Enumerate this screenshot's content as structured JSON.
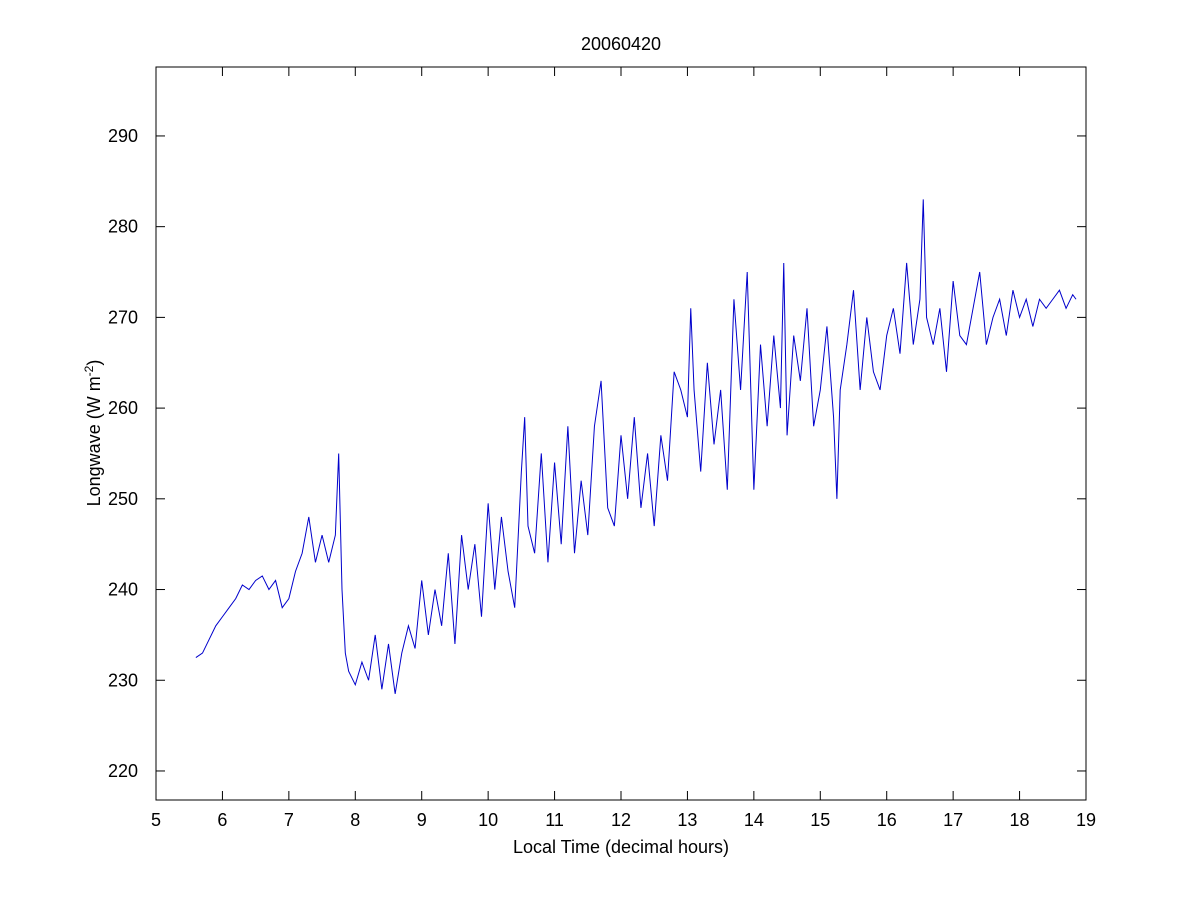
{
  "chart_data": {
    "type": "line",
    "title": "20060420",
    "xlabel": "Local Time (decimal hours)",
    "ylabel": [
      "Longwave (W m",
      "-2",
      ")"
    ],
    "xlim": [
      5,
      19
    ],
    "xticks": [
      5,
      6,
      7,
      8,
      9,
      10,
      11,
      12,
      13,
      14,
      15,
      16,
      17,
      18,
      19
    ],
    "ylim": [
      216.8,
      297.6
    ],
    "yticks": [
      220,
      230,
      240,
      250,
      260,
      270,
      280,
      290
    ],
    "series": [
      {
        "color": "#0000cc",
        "x": [
          5.6,
          5.7,
          5.8,
          5.9,
          6.0,
          6.1,
          6.2,
          6.3,
          6.4,
          6.5,
          6.6,
          6.7,
          6.8,
          6.9,
          7.0,
          7.1,
          7.2,
          7.3,
          7.4,
          7.5,
          7.6,
          7.7,
          7.75,
          7.8,
          7.85,
          7.9,
          8.0,
          8.1,
          8.2,
          8.3,
          8.4,
          8.5,
          8.6,
          8.7,
          8.8,
          8.9,
          9.0,
          9.1,
          9.2,
          9.3,
          9.4,
          9.5,
          9.6,
          9.7,
          9.8,
          9.9,
          10.0,
          10.1,
          10.2,
          10.3,
          10.4,
          10.5,
          10.55,
          10.6,
          10.7,
          10.8,
          10.9,
          11.0,
          11.1,
          11.2,
          11.3,
          11.4,
          11.5,
          11.6,
          11.7,
          11.8,
          11.9,
          12.0,
          12.1,
          12.2,
          12.3,
          12.4,
          12.5,
          12.6,
          12.7,
          12.8,
          12.9,
          13.0,
          13.05,
          13.1,
          13.2,
          13.3,
          13.4,
          13.5,
          13.6,
          13.7,
          13.8,
          13.9,
          14.0,
          14.1,
          14.2,
          14.3,
          14.4,
          14.45,
          14.5,
          14.6,
          14.7,
          14.8,
          14.9,
          15.0,
          15.1,
          15.2,
          15.25,
          15.3,
          15.4,
          15.5,
          15.6,
          15.7,
          15.8,
          15.9,
          16.0,
          16.1,
          16.2,
          16.3,
          16.4,
          16.5,
          16.55,
          16.6,
          16.7,
          16.8,
          16.9,
          17.0,
          17.1,
          17.2,
          17.3,
          17.4,
          17.5,
          17.6,
          17.7,
          17.8,
          17.9,
          18.0,
          18.1,
          18.2,
          18.3,
          18.4,
          18.5,
          18.6,
          18.7,
          18.8,
          18.85
        ],
        "values": [
          232.5,
          233,
          234.5,
          236,
          237,
          238,
          239,
          240.5,
          240,
          241,
          241.5,
          240,
          241,
          238,
          239,
          242,
          244,
          248,
          243,
          246,
          243,
          246,
          255,
          240,
          233,
          231,
          229.5,
          232,
          230,
          235,
          229,
          234,
          228.5,
          233,
          236,
          233.5,
          241,
          235,
          240,
          236,
          244,
          234,
          246,
          240,
          245,
          237,
          249.5,
          240,
          248,
          242,
          238,
          253,
          259,
          247,
          244,
          255,
          243,
          254,
          245,
          258,
          244,
          252,
          246,
          258,
          263,
          249,
          247,
          257,
          250,
          259,
          249,
          255,
          247,
          257,
          252,
          264,
          262,
          259,
          271,
          262,
          253,
          265,
          256,
          262,
          251,
          272,
          262,
          275,
          251,
          267,
          258,
          268,
          260,
          276,
          257,
          268,
          263,
          271,
          258,
          262,
          269,
          259,
          250,
          262,
          267,
          273,
          262,
          270,
          264,
          262,
          268,
          271,
          266,
          276,
          267,
          272,
          283,
          270,
          267,
          271,
          264,
          274,
          268,
          267,
          271,
          275,
          267,
          270,
          272,
          268,
          273,
          270,
          272,
          269,
          272,
          271,
          272,
          273,
          271,
          272.5,
          272
        ]
      }
    ]
  }
}
